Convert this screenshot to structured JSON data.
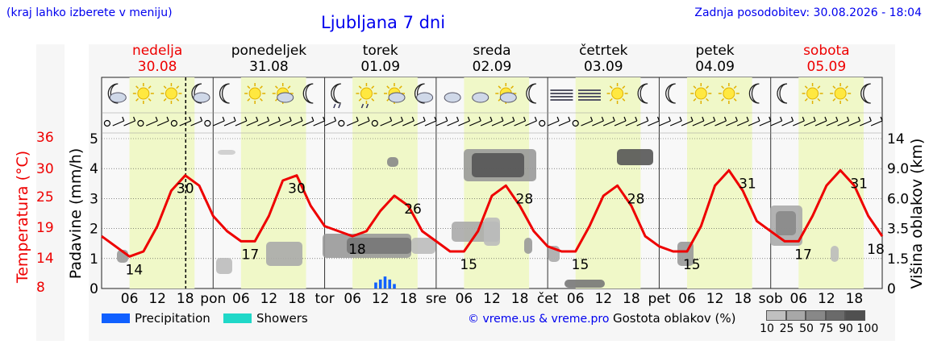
{
  "header": {
    "left_note": "(kraj lahko izberete v meniju)",
    "title": "Ljubljana 7 dni",
    "updated": "Zadnja posodobitev: 30.08.2026 - 18:04"
  },
  "days": [
    {
      "name": "nedelja",
      "date": "30.08",
      "weekend": true
    },
    {
      "name": "ponedeljek",
      "date": "31.08",
      "weekend": false
    },
    {
      "name": "torek",
      "date": "01.09",
      "weekend": false
    },
    {
      "name": "sreda",
      "date": "02.09",
      "weekend": false
    },
    {
      "name": "četrtek",
      "date": "03.09",
      "weekend": false
    },
    {
      "name": "petek",
      "date": "04.09",
      "weekend": false
    },
    {
      "name": "sobota",
      "date": "05.09",
      "weekend": true
    }
  ],
  "icons": [
    "moon-cloud",
    "sun",
    "sun",
    "moon-cloud",
    "moon",
    "sun",
    "sun-cloud",
    "moon",
    "moon-rain",
    "sun-rain",
    "sun-cloud",
    "moon-cloud",
    "cloud",
    "cloud-sun",
    "sun-cloud",
    "moon",
    "fog",
    "fog",
    "sun",
    "moon",
    "moon",
    "sun",
    "sun",
    "moon",
    "moon",
    "sun",
    "sun",
    "moon"
  ],
  "labels": {
    "temp_axis": "Temperatura (°C)",
    "precip_axis": "Padavine (mm/h)",
    "cloud_axis": "Višina oblakov (km)",
    "precip_legend": "Precipitation",
    "showers_legend": "Showers",
    "credit": "© vreme.us & vreme.pro",
    "cloud_density": "Gostota oblakov (%)"
  },
  "colors": {
    "accent": "#0000ee",
    "weekend": "#ee0000",
    "temperature": "#ee0000",
    "precipitation": "#1060ff",
    "showers": "#20d8c8",
    "daytime": "#f0f8c8"
  },
  "chart_data": {
    "type": "line",
    "x_tick_labels": [
      "06",
      "12",
      "18",
      "pon",
      "06",
      "12",
      "18",
      "tor",
      "06",
      "12",
      "18",
      "sre",
      "06",
      "12",
      "18",
      "čet",
      "06",
      "12",
      "18",
      "pet",
      "06",
      "12",
      "18",
      "sob",
      "06",
      "12",
      "18"
    ],
    "temp_ticks": [
      "36",
      "30",
      "25",
      "19",
      "14",
      "8"
    ],
    "precip_ticks": [
      "5",
      "4",
      "3",
      "2",
      "1",
      "0"
    ],
    "cloud_ticks": [
      "14",
      "9.0",
      "6.0",
      "3.5",
      "1.5",
      "0"
    ],
    "cloud_density_scale": [
      "10",
      "25",
      "50",
      "75",
      "90",
      "100"
    ],
    "ylim_precip": [
      0,
      5
    ],
    "ylim_temp": [
      8,
      36
    ],
    "series": [
      {
        "x_hours": [
          0,
          3,
          6,
          9,
          12,
          15,
          18,
          21,
          24,
          27,
          30,
          33,
          36,
          39,
          42,
          45,
          48,
          51,
          54,
          57,
          60,
          63,
          66,
          69,
          72,
          75,
          78,
          81,
          84,
          87,
          90,
          93,
          96,
          99,
          102,
          105,
          108,
          111,
          114,
          117,
          120,
          123,
          126,
          129,
          132,
          135,
          138,
          141,
          144,
          147,
          150,
          153,
          156,
          159,
          162,
          165,
          168
        ],
        "temperature_c": [
          18,
          16,
          14,
          15,
          20,
          27,
          30,
          28,
          22,
          19,
          17,
          17,
          22,
          29,
          30,
          24,
          20,
          19,
          18,
          19,
          23,
          26,
          24,
          19,
          17,
          15,
          15,
          19,
          26,
          28,
          24,
          19,
          16,
          15,
          15,
          20,
          26,
          28,
          24,
          18,
          16,
          15,
          15,
          20,
          28,
          31,
          27,
          21,
          19,
          17,
          17,
          22,
          28,
          31,
          28,
          22,
          18
        ]
      }
    ],
    "temp_labels": [
      {
        "hour": 7,
        "text": "14"
      },
      {
        "hour": 18,
        "text": "30"
      },
      {
        "hour": 32,
        "text": "17"
      },
      {
        "hour": 42,
        "text": "30"
      },
      {
        "hour": 55,
        "text": "18"
      },
      {
        "hour": 67,
        "text": "26"
      },
      {
        "hour": 79,
        "text": "15"
      },
      {
        "hour": 91,
        "text": "28"
      },
      {
        "hour": 103,
        "text": "15"
      },
      {
        "hour": 115,
        "text": "28"
      },
      {
        "hour": 127,
        "text": "15"
      },
      {
        "hour": 139,
        "text": "31"
      },
      {
        "hour": 151,
        "text": "17"
      },
      {
        "hour": 163,
        "text": "31"
      },
      {
        "hour": 168,
        "text": "18"
      }
    ],
    "precipitation_mm_h": [
      {
        "hour": 59,
        "value": 0.2
      },
      {
        "hour": 60,
        "value": 0.3
      },
      {
        "hour": 61,
        "value": 0.4
      },
      {
        "hour": 62,
        "value": 0.3
      },
      {
        "hour": 63,
        "value": 0.15
      }
    ],
    "legend": "bottom-left"
  }
}
